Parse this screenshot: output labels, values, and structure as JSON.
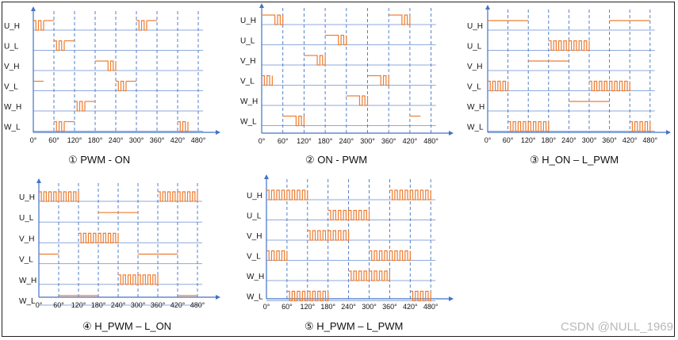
{
  "figure": {
    "angles": [
      "0°",
      "60°",
      "120°",
      "180°",
      "240°",
      "300°",
      "360°",
      "420°",
      "480°"
    ],
    "signals": [
      "U_H",
      "U_L",
      "V_H",
      "V_L",
      "W_H",
      "W_L"
    ],
    "colors": {
      "axis": "#4472c4",
      "grid": "#8faadc",
      "wave": "#ed7d31",
      "text": "#111111"
    },
    "diagrams": [
      {
        "label": "① PWM - ON",
        "waves": [
          [
            [
              0,
              30,
              "pwm"
            ],
            [
              30,
              60,
              "high"
            ],
            [
              300,
              330,
              "pwm"
            ],
            [
              330,
              360,
              "high"
            ]
          ],
          [
            [
              60,
              90,
              "pwm"
            ],
            [
              90,
              120,
              "high"
            ]
          ],
          [
            [
              180,
              210,
              "high"
            ],
            [
              210,
              240,
              "pwm"
            ]
          ],
          [
            [
              0,
              30,
              "high"
            ],
            [
              240,
              270,
              "pwm"
            ],
            [
              270,
              300,
              "high"
            ]
          ],
          [
            [
              120,
              150,
              "pwm"
            ],
            [
              150,
              180,
              "high"
            ]
          ],
          [
            [
              60,
              90,
              "pwm"
            ],
            [
              90,
              120,
              "high"
            ],
            [
              420,
              450,
              "pwm"
            ]
          ]
        ]
      },
      {
        "label": "② ON - PWM",
        "waves": [
          [
            [
              0,
              30,
              "high"
            ],
            [
              30,
              60,
              "pwm"
            ],
            [
              360,
              390,
              "high"
            ],
            [
              390,
              420,
              "pwm"
            ]
          ],
          [
            [
              180,
              210,
              "high"
            ],
            [
              210,
              240,
              "pwm"
            ]
          ],
          [
            [
              120,
              150,
              "high"
            ],
            [
              150,
              180,
              "pwm"
            ]
          ],
          [
            [
              0,
              30,
              "pwm"
            ],
            [
              300,
              330,
              "high"
            ],
            [
              330,
              360,
              "pwm"
            ]
          ],
          [
            [
              240,
              270,
              "high"
            ],
            [
              270,
              300,
              "pwm"
            ]
          ],
          [
            [
              60,
              90,
              "high"
            ],
            [
              90,
              120,
              "pwm"
            ],
            [
              420,
              450,
              "high"
            ]
          ]
        ]
      },
      {
        "label": "③ H_ON – L_PWM",
        "waves": [
          [
            [
              0,
              120,
              "high"
            ],
            [
              360,
              480,
              "high"
            ]
          ],
          [
            [
              180,
              300,
              "pwm"
            ]
          ],
          [
            [
              120,
              240,
              "high"
            ]
          ],
          [
            [
              0,
              60,
              "pwm"
            ],
            [
              300,
              420,
              "pwm"
            ]
          ],
          [
            [
              240,
              360,
              "high"
            ]
          ],
          [
            [
              60,
              180,
              "pwm"
            ],
            [
              420,
              480,
              "pwm"
            ]
          ]
        ]
      },
      {
        "label": "④ H_PWM – L_ON",
        "waves": [
          [
            [
              0,
              120,
              "pwm"
            ],
            [
              360,
              480,
              "pwm"
            ]
          ],
          [
            [
              180,
              300,
              "high"
            ]
          ],
          [
            [
              120,
              240,
              "pwm"
            ]
          ],
          [
            [
              0,
              60,
              "high"
            ],
            [
              300,
              420,
              "high"
            ]
          ],
          [
            [
              240,
              360,
              "pwm"
            ]
          ],
          [
            [
              60,
              180,
              "high"
            ],
            [
              420,
              480,
              "high"
            ]
          ]
        ]
      },
      {
        "label": "⑤ H_PWM – L_PWM",
        "waves": [
          [
            [
              0,
              120,
              "pwm"
            ],
            [
              360,
              480,
              "pwm"
            ]
          ],
          [
            [
              180,
              300,
              "pwm"
            ]
          ],
          [
            [
              120,
              240,
              "pwm"
            ]
          ],
          [
            [
              0,
              60,
              "pwm"
            ],
            [
              300,
              420,
              "pwm"
            ]
          ],
          [
            [
              240,
              360,
              "pwm"
            ]
          ],
          [
            [
              60,
              180,
              "pwm"
            ],
            [
              420,
              480,
              "pwm"
            ]
          ]
        ]
      }
    ]
  },
  "watermark": "CSDN @NULL_1969"
}
